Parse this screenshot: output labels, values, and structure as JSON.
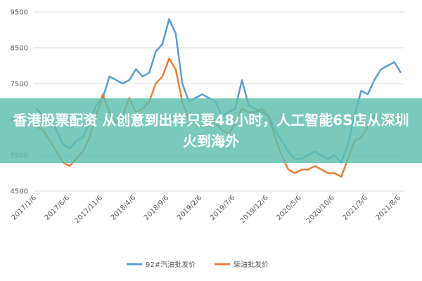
{
  "chart_data": {
    "type": "line",
    "categories": [
      "2017/1/6",
      null,
      null,
      null,
      null,
      "2017/6/6",
      null,
      null,
      null,
      null,
      "2017/11/6",
      null,
      null,
      null,
      null,
      "2018/4/6",
      null,
      null,
      null,
      null,
      "2018/9/6",
      null,
      null,
      null,
      null,
      "2019/2/6",
      null,
      null,
      null,
      null,
      "2019/7/6",
      null,
      null,
      null,
      null,
      "2019/12/6",
      null,
      null,
      null,
      null,
      "2020/5/6",
      null,
      null,
      null,
      null,
      "2020/10/6",
      null,
      null,
      null,
      null,
      "2021/3/6",
      null,
      null,
      null,
      null,
      "2021/8/6"
    ],
    "series": [
      {
        "name": "92#汽油批发价",
        "color": "#5b9bd5",
        "values": [
          6800,
          6600,
          6500,
          6200,
          5800,
          5700,
          5900,
          6000,
          6400,
          6900,
          7100,
          7700,
          7600,
          7500,
          7600,
          7900,
          7700,
          7800,
          8400,
          8600,
          9300,
          8900,
          7500,
          7000,
          7100,
          7200,
          7100,
          7000,
          6600,
          6700,
          6800,
          7600,
          6900,
          6800,
          6700,
          6600,
          6200,
          5900,
          5600,
          5400,
          5400,
          5500,
          5600,
          5500,
          5400,
          5500,
          5300,
          5800,
          6600,
          7300,
          7200,
          7600,
          7900,
          8000,
          8100,
          7800
        ]
      },
      {
        "name": "柴油批发价",
        "color": "#ed7d31",
        "values": [
          6300,
          6200,
          5900,
          5600,
          5300,
          5200,
          5400,
          5600,
          6000,
          6600,
          7200,
          6700,
          6400,
          6600,
          7100,
          6700,
          6800,
          7000,
          7500,
          7700,
          8200,
          7900,
          7000,
          6500,
          6400,
          6300,
          6600,
          6400,
          6200,
          6100,
          6400,
          6800,
          6700,
          6700,
          6800,
          6600,
          6000,
          5500,
          5100,
          5000,
          5100,
          5100,
          5200,
          5100,
          5000,
          5000,
          4900,
          5400,
          5900,
          6000,
          6300,
          6600,
          6300,
          6500,
          6600,
          6500
        ]
      }
    ],
    "ylim": [
      4500,
      9500
    ],
    "yticks": [
      4500,
      5500,
      6500,
      7500,
      8500,
      9500
    ],
    "grid": true,
    "legend": "bottom"
  },
  "banner": {
    "text": "香港股票配资 从创意到出样只要48小时，人工智能6S店从深圳火到海外"
  }
}
